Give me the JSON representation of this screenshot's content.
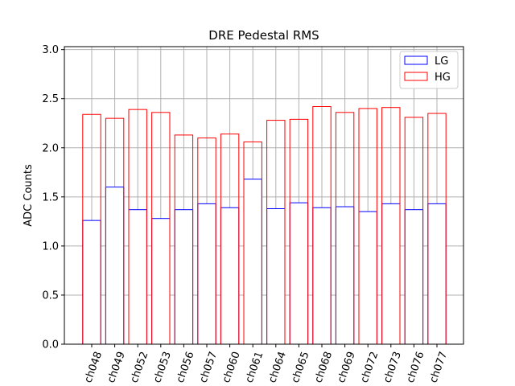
{
  "chart_data": {
    "type": "bar",
    "title": "DRE Pedestal RMS",
    "xlabel": "",
    "ylabel": "ADC Counts",
    "categories": [
      "ch048",
      "ch049",
      "ch052",
      "ch053",
      "ch056",
      "ch057",
      "ch060",
      "ch061",
      "ch064",
      "ch065",
      "ch068",
      "ch069",
      "ch072",
      "ch073",
      "ch076",
      "ch077"
    ],
    "series": [
      {
        "name": "LG",
        "color": "#0000ff",
        "fill": "none",
        "values": [
          1.26,
          1.6,
          1.37,
          1.28,
          1.37,
          1.43,
          1.39,
          1.68,
          1.38,
          1.44,
          1.39,
          1.4,
          1.35,
          1.43,
          1.37,
          1.43
        ]
      },
      {
        "name": "HG",
        "color": "#ff0000",
        "fill": "none",
        "values": [
          2.34,
          2.3,
          2.39,
          2.36,
          2.13,
          2.1,
          2.14,
          2.06,
          2.28,
          2.29,
          2.42,
          2.36,
          2.4,
          2.41,
          2.31,
          2.35
        ]
      }
    ],
    "ylim": [
      0,
      3.03
    ],
    "yticks": [
      "0.0",
      "0.5",
      "1.0",
      "1.5",
      "2.0",
      "2.5",
      "3.0"
    ],
    "grid": true,
    "legend": "top-right",
    "tick_rotation": 70
  }
}
